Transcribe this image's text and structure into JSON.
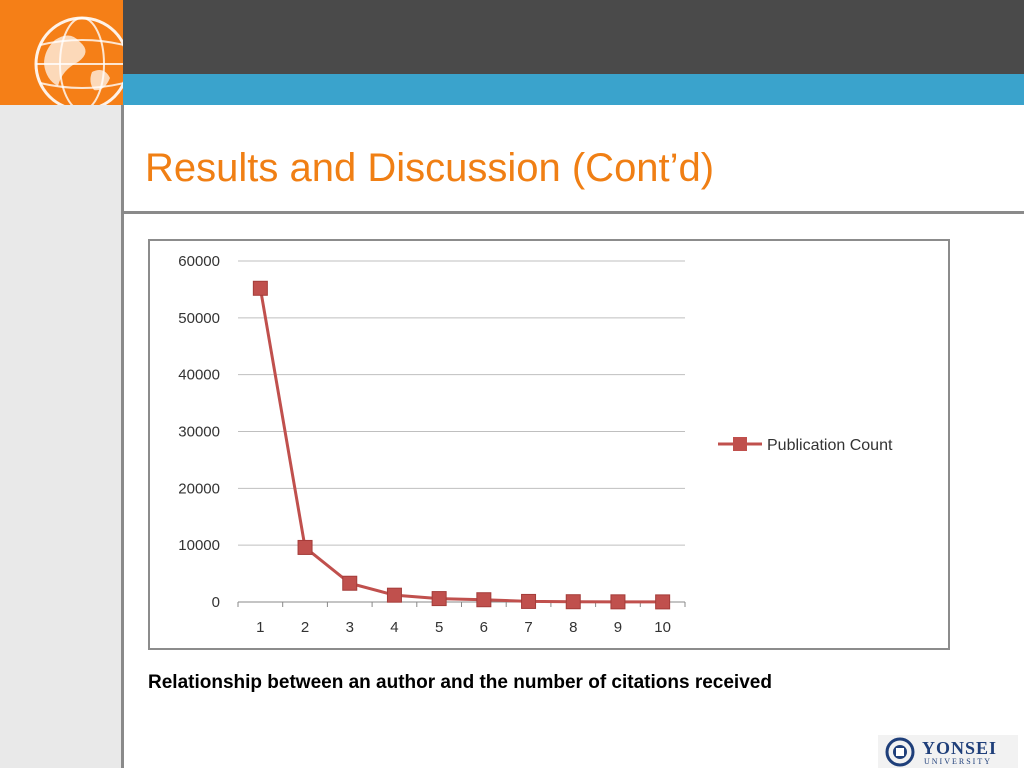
{
  "slide": {
    "title": "Results and Discussion (Cont’d)",
    "caption": "Relationship between an author and the number of citations received"
  },
  "logo": {
    "icon": "yonsei-seal-icon",
    "name": "YONSEI",
    "subtitle": "UNIVERSITY"
  },
  "colors": {
    "accent_orange": "#f57f17",
    "header_dark": "#4a4a4a",
    "header_blue": "#3aa3cc",
    "series": "#c0504d"
  },
  "chart_data": {
    "type": "line",
    "categories": [
      "1",
      "2",
      "3",
      "4",
      "5",
      "6",
      "7",
      "8",
      "9",
      "10"
    ],
    "series": [
      {
        "name": "Publication Count",
        "values": [
          55200,
          9600,
          3300,
          1200,
          600,
          400,
          100,
          50,
          30,
          20
        ]
      }
    ],
    "y_ticks": [
      "0",
      "10000",
      "20000",
      "30000",
      "40000",
      "50000",
      "60000"
    ],
    "ylim": [
      0,
      60000
    ],
    "grid": true,
    "legend_position": "right",
    "marker": "square"
  }
}
